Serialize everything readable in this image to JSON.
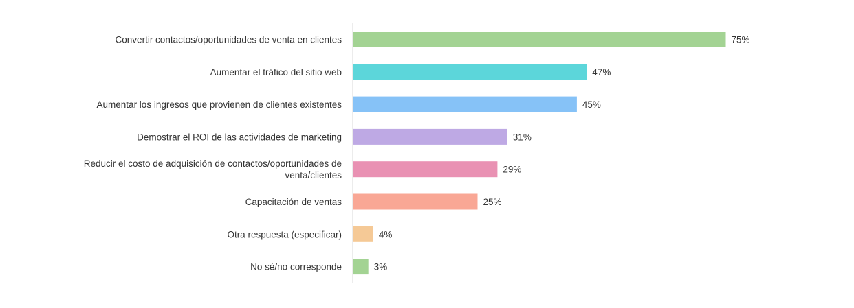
{
  "chart_data": {
    "type": "bar",
    "orientation": "horizontal",
    "categories": [
      [
        "Convertir contactos/oportunidades de venta en clientes"
      ],
      [
        "Aumentar el tráfico del sitio web"
      ],
      [
        "Aumentar los ingresos que provienen de clientes existentes"
      ],
      [
        "Demostrar el ROI de las actividades de marketing"
      ],
      [
        "Reducir el costo de adquisición de contactos/oportunidades de",
        "venta/clientes"
      ],
      [
        "Capacitación de ventas"
      ],
      [
        "Otra respuesta (especificar)"
      ],
      [
        "No sé/no corresponde"
      ]
    ],
    "values": [
      75,
      47,
      45,
      31,
      29,
      25,
      4,
      3
    ],
    "value_labels": [
      "75%",
      "47%",
      "45%",
      "31%",
      "29%",
      "25%",
      "4%",
      "3%"
    ],
    "colors": [
      "#a3d393",
      "#5cd6da",
      "#86c2f7",
      "#bea9e4",
      "#e991b3",
      "#f9a795",
      "#f5c996",
      "#a3d393"
    ],
    "xlim": [
      0,
      100
    ],
    "grid": false,
    "legend": "none"
  }
}
